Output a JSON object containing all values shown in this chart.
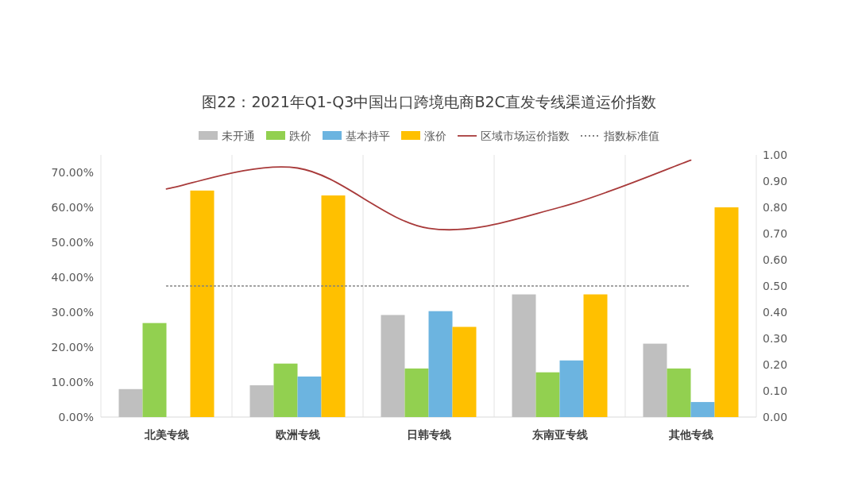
{
  "chart_data": {
    "type": "bar",
    "title": "图22：2021年Q1-Q3中国出口跨境电商B2C直发专线渠道运价指数",
    "categories": [
      "北美专线",
      "欧洲专线",
      "日韩专线",
      "东南亚专线",
      "其他专线"
    ],
    "series": [
      {
        "name": "未开通",
        "color": "#bfbfbf",
        "values": [
          8.0,
          9.1,
          29.2,
          35.1,
          21.0
        ]
      },
      {
        "name": "跌价",
        "color": "#92d050",
        "values": [
          26.9,
          15.3,
          13.9,
          12.8,
          13.9
        ]
      },
      {
        "name": "基本持平",
        "color": "#6cb4e0",
        "values": [
          0,
          11.6,
          30.3,
          16.2,
          4.3
        ]
      },
      {
        "name": "涨价",
        "color": "#ffc000",
        "values": [
          64.8,
          63.4,
          25.8,
          35.1,
          60.0
        ]
      },
      {
        "name": "区域市场运价指数",
        "type": "line",
        "axis": "y2",
        "color": "#a83a3a",
        "line_style": "solid",
        "values": [
          0.87,
          0.95,
          0.72,
          0.8,
          0.98
        ]
      },
      {
        "name": "指数标准值",
        "type": "line",
        "axis": "y2",
        "color": "#808080",
        "line_style": "dotted",
        "values": [
          0.5,
          0.5,
          0.5,
          0.5,
          0.5
        ]
      }
    ],
    "ylim": [
      0,
      75
    ],
    "yticks": [
      {
        "value": 0,
        "label": "0.00%"
      },
      {
        "value": 10,
        "label": "10.00%"
      },
      {
        "value": 20,
        "label": "20.00%"
      },
      {
        "value": 30,
        "label": "30.00%"
      },
      {
        "value": 40,
        "label": "40.00%"
      },
      {
        "value": 50,
        "label": "50.00%"
      },
      {
        "value": 60,
        "label": "60.00%"
      },
      {
        "value": 70,
        "label": "70.00%"
      }
    ],
    "y2lim": [
      0,
      1
    ],
    "y2ticks": [
      {
        "value": 0,
        "label": "0.00"
      },
      {
        "value": 0.1,
        "label": "0.10"
      },
      {
        "value": 0.2,
        "label": "0.20"
      },
      {
        "value": 0.3,
        "label": "0.30"
      },
      {
        "value": 0.4,
        "label": "0.40"
      },
      {
        "value": 0.5,
        "label": "0.50"
      },
      {
        "value": 0.6,
        "label": "0.60"
      },
      {
        "value": 0.7,
        "label": "0.70"
      },
      {
        "value": 0.8,
        "label": "0.80"
      },
      {
        "value": 0.9,
        "label": "0.90"
      },
      {
        "value": 1,
        "label": "1.00"
      }
    ],
    "grid": "x",
    "legend": "top"
  }
}
